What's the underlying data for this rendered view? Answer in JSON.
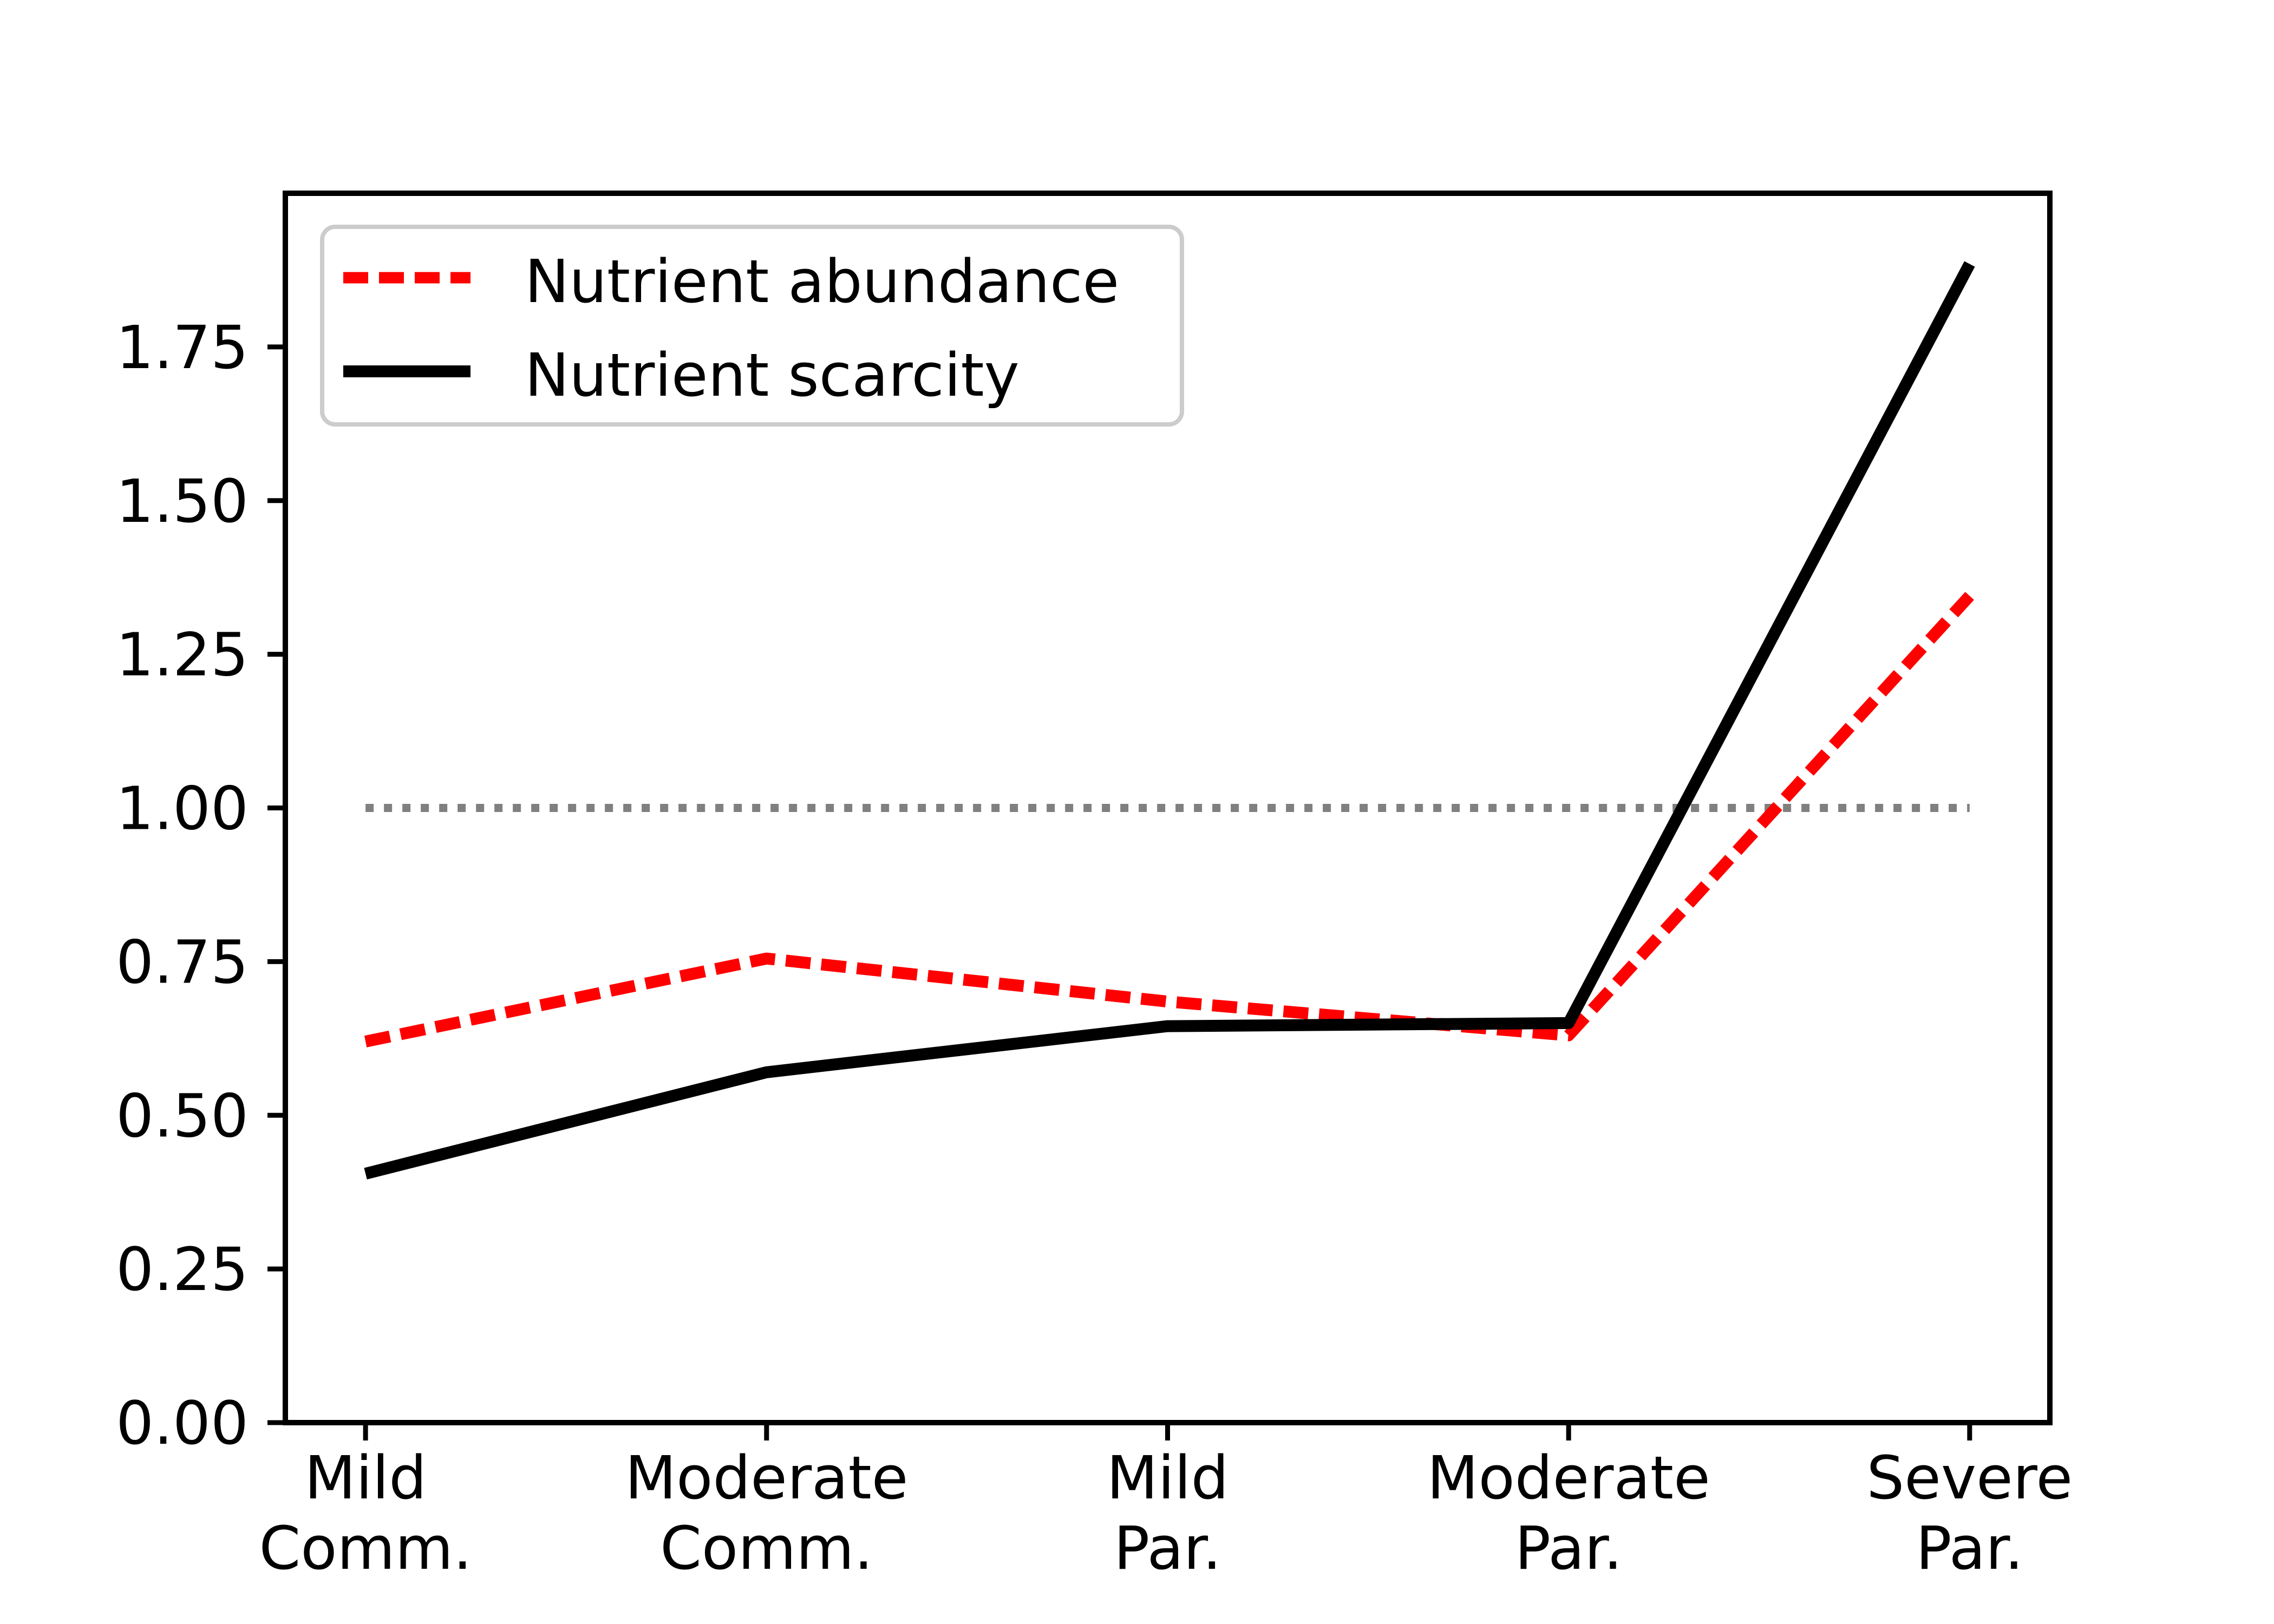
{
  "chart_data": {
    "type": "line",
    "categories": [
      [
        "Mild",
        "Comm."
      ],
      [
        "Moderate",
        "Comm."
      ],
      [
        "Mild",
        "Par."
      ],
      [
        "Moderate",
        "Par."
      ],
      [
        "Severe",
        "Par."
      ]
    ],
    "series": [
      {
        "name": "Nutrient abundance",
        "color": "#ff0000",
        "style": "dashed",
        "values": [
          0.62,
          0.755,
          0.685,
          0.63,
          1.345
        ]
      },
      {
        "name": "Nutrient scarcity",
        "color": "#000000",
        "style": "solid",
        "values": [
          0.405,
          0.57,
          0.645,
          0.65,
          1.885
        ]
      }
    ],
    "reference_line": {
      "y": 1.0,
      "color": "#808080",
      "style": "dotted"
    },
    "yticks": [
      "0.00",
      "0.25",
      "0.50",
      "0.75",
      "1.00",
      "1.25",
      "1.50",
      "1.75"
    ],
    "ylim": [
      0,
      2.0
    ],
    "xlabel": "",
    "ylabel": "",
    "title": "",
    "grid": false,
    "legend_position": "upper left"
  },
  "colors": {
    "background": "#ffffff",
    "frame": "#000000",
    "legend_border": "#cccccc"
  }
}
